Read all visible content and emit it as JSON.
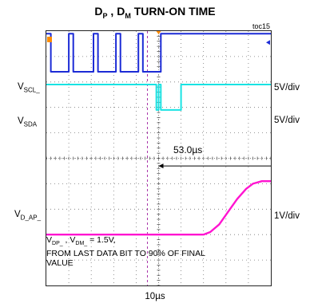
{
  "title": {
    "prefix": "D",
    "sub1": "P",
    "mid": " , D",
    "sub2": "M",
    "rest": "  TURN-ON TIME"
  },
  "toc_label": "toc15",
  "channels": [
    {
      "label_main": "V",
      "label_sub": "SCL_",
      "scale": "5V/div",
      "color": "#1c2bd6"
    },
    {
      "label_main": "V",
      "label_sub": "SDA",
      "scale": "5V/div",
      "color": "#19e3e3"
    },
    {
      "label_main": "V",
      "label_sub": "D_AP_",
      "scale": "1V/div",
      "color": "#ff14d0"
    }
  ],
  "delta_label": "53.0µs",
  "x_scale": "10µs",
  "note": {
    "line1_a": "V",
    "line1_sub_a": "DP_",
    "line1_b": " , V",
    "line1_sub_b": "DM_",
    "line1_c": " = 1.5V,",
    "line2": "FROM LAST DATA BIT TO 90% OF FINAL",
    "line3": "VALUE"
  },
  "chart_data": {
    "type": "line",
    "title": "DP , DM TURN-ON TIME",
    "xlabel": "10µs",
    "ylabel": "",
    "grid": true,
    "x_unit": "µs",
    "x_range": [
      -50,
      50
    ],
    "series": [
      {
        "name": "VSCL_",
        "scale": "5V/div",
        "points": [
          [
            -50,
            4.9
          ],
          [
            -48,
            4.9
          ],
          [
            -48,
            3.4
          ],
          [
            -40,
            3.4
          ],
          [
            -40,
            4.9
          ],
          [
            -38,
            4.9
          ],
          [
            -38,
            3.4
          ],
          [
            -29,
            3.4
          ],
          [
            -29,
            4.9
          ],
          [
            -27,
            4.9
          ],
          [
            -27,
            3.4
          ],
          [
            -19,
            3.4
          ],
          [
            -19,
            4.9
          ],
          [
            -17,
            4.9
          ],
          [
            -17,
            3.4
          ],
          [
            -9,
            3.4
          ],
          [
            -9,
            4.9
          ],
          [
            -7,
            4.9
          ],
          [
            -7,
            3.4
          ],
          [
            1,
            3.4
          ],
          [
            1,
            4.9
          ],
          [
            50,
            4.9
          ]
        ]
      },
      {
        "name": "VSDA",
        "scale": "5V/div",
        "points": [
          [
            -50,
            2.9
          ],
          [
            -1,
            2.9
          ],
          [
            -1,
            1.9
          ],
          [
            0,
            1.9
          ],
          [
            0,
            2.9
          ],
          [
            1,
            2.9
          ],
          [
            1,
            1.9
          ],
          [
            10,
            1.9
          ],
          [
            10,
            2.9
          ],
          [
            50,
            2.9
          ]
        ]
      },
      {
        "name": "VD_AP_",
        "scale": "1V/div",
        "points": [
          [
            -50,
            -3.0
          ],
          [
            20,
            -3.0
          ],
          [
            23,
            -2.9
          ],
          [
            27,
            -2.6
          ],
          [
            31,
            -2.1
          ],
          [
            35,
            -1.6
          ],
          [
            39,
            -1.2
          ],
          [
            42,
            -1.0
          ],
          [
            46,
            -0.9
          ],
          [
            50,
            -0.9
          ]
        ]
      }
    ],
    "markers": {
      "delta_start": 0,
      "delta_end": 53.0,
      "delta_label": "53.0µs"
    }
  }
}
